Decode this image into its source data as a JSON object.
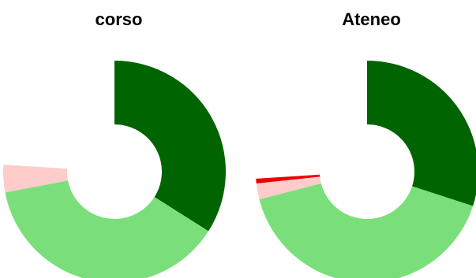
{
  "chart_data": [
    {
      "type": "pie",
      "title": "corso",
      "slices": [
        {
          "value": 34,
          "color": "#006400"
        },
        {
          "value": 38,
          "color": "#7ADF7A"
        },
        {
          "value": 4,
          "color": "#FFCCCC"
        }
      ]
    },
    {
      "type": "pie",
      "title": "Ateneo",
      "slices": [
        {
          "value": 30,
          "color": "#006400"
        },
        {
          "value": 41,
          "color": "#7ADF7A"
        },
        {
          "value": 2.3,
          "color": "#FFCCCC"
        },
        {
          "value": 0.7,
          "color": "#EE0000"
        }
      ]
    }
  ]
}
